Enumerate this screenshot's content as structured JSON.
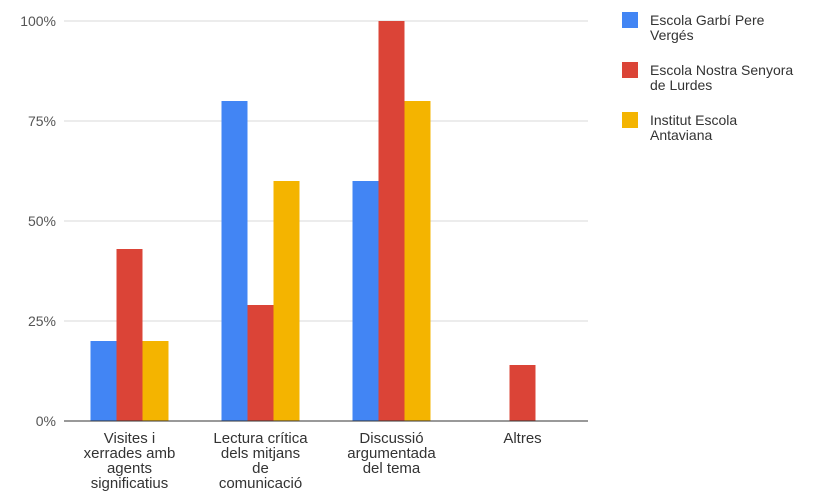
{
  "chart_data": {
    "type": "bar",
    "title": "",
    "xlabel": "",
    "ylabel": "",
    "categories": [
      [
        "Visites i",
        "xerrades amb",
        "agents",
        "significatius"
      ],
      [
        "Lectura crítica",
        "dels mitjans",
        "de",
        "comunicació"
      ],
      [
        "Discussió",
        "argumentada",
        "del tema"
      ],
      [
        "Altres"
      ]
    ],
    "series": [
      {
        "name": [
          "Escola Garbí Pere",
          "Vergés"
        ],
        "color": "#4285f4",
        "values": [
          20,
          80,
          60,
          0
        ]
      },
      {
        "name": [
          "Escola Nostra Senyora",
          "de Lurdes"
        ],
        "color": "#db4437",
        "values": [
          43,
          29,
          100,
          14
        ]
      },
      {
        "name": [
          "Institut Escola",
          "Antaviana"
        ],
        "color": "#f4b400",
        "values": [
          20,
          60,
          80,
          0
        ]
      }
    ],
    "ylim": [
      0,
      100
    ],
    "yticks": [
      0,
      25,
      50,
      75,
      100
    ],
    "ytick_labels": [
      "0%",
      "25%",
      "50%",
      "75%",
      "100%"
    ],
    "grid": true,
    "legend": "right"
  }
}
